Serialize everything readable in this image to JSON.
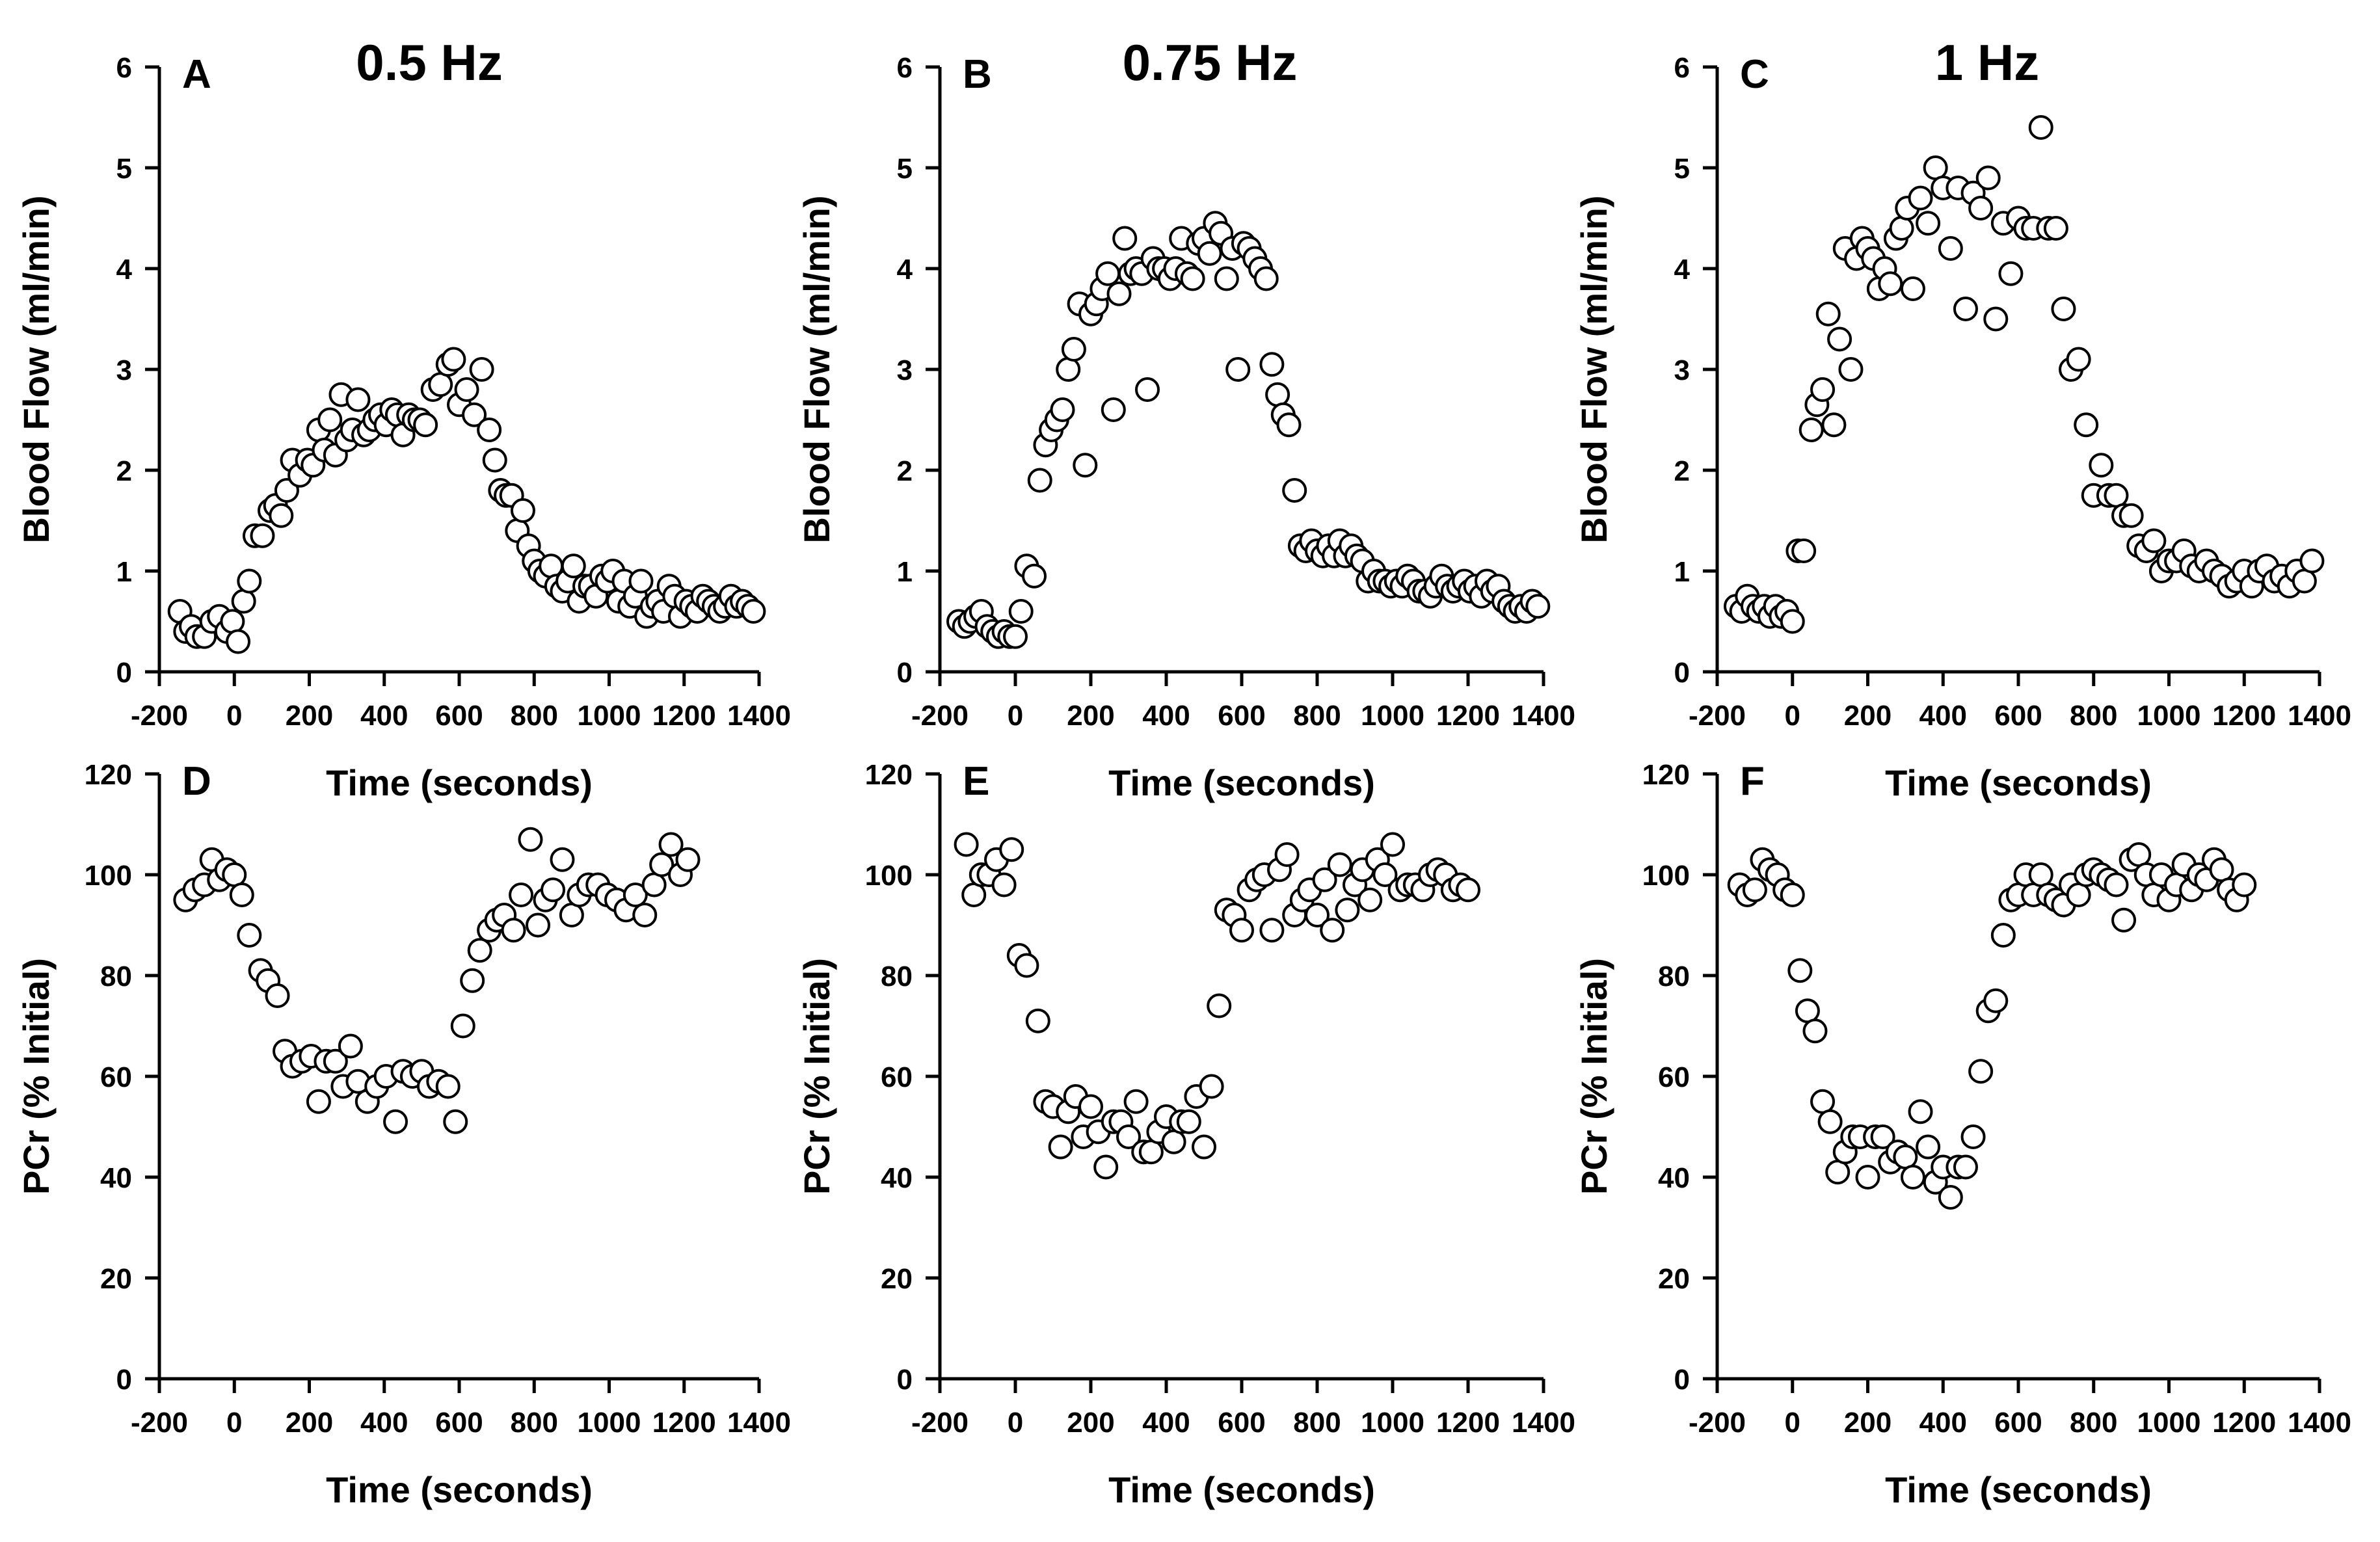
{
  "chart_data": [
    {
      "panel": "A",
      "type": "scatter",
      "title": "0.5 Hz",
      "xlabel": "Time (seconds)",
      "ylabel": "Blood Flow (ml/min)",
      "xlim": [
        -200,
        1400
      ],
      "ylim": [
        0,
        6
      ],
      "xticks": [
        -200,
        0,
        200,
        400,
        600,
        800,
        1000,
        1200,
        1400
      ],
      "yticks": [
        0,
        1,
        2,
        3,
        4,
        5,
        6
      ],
      "x": [
        -145,
        -130,
        -115,
        -100,
        -80,
        -60,
        -40,
        -20,
        -5,
        10,
        25,
        40,
        55,
        75,
        95,
        110,
        125,
        140,
        155,
        175,
        195,
        210,
        225,
        240,
        255,
        270,
        285,
        300,
        315,
        330,
        345,
        360,
        375,
        390,
        405,
        420,
        435,
        450,
        465,
        480,
        495,
        510,
        530,
        550,
        570,
        585,
        600,
        620,
        640,
        660,
        680,
        695,
        710,
        725,
        740,
        755,
        770,
        785,
        800,
        815,
        830,
        845,
        860,
        875,
        890,
        905,
        920,
        935,
        950,
        965,
        980,
        995,
        1010,
        1025,
        1040,
        1055,
        1070,
        1085,
        1100,
        1115,
        1130,
        1145,
        1160,
        1175,
        1190,
        1205,
        1220,
        1235,
        1250,
        1265,
        1280,
        1295,
        1310,
        1325,
        1340,
        1355,
        1370,
        1385
      ],
      "y": [
        0.6,
        0.4,
        0.45,
        0.35,
        0.35,
        0.5,
        0.55,
        0.4,
        0.5,
        0.3,
        0.7,
        0.9,
        1.35,
        1.35,
        1.6,
        1.65,
        1.55,
        1.8,
        2.1,
        1.95,
        2.1,
        2.05,
        2.4,
        2.2,
        2.5,
        2.15,
        2.75,
        2.3,
        2.4,
        2.7,
        2.35,
        2.4,
        2.5,
        2.55,
        2.45,
        2.6,
        2.55,
        2.35,
        2.55,
        2.5,
        2.5,
        2.45,
        2.8,
        2.85,
        3.05,
        3.1,
        2.65,
        2.8,
        2.55,
        3.0,
        2.4,
        2.1,
        1.8,
        1.75,
        1.75,
        1.4,
        1.6,
        1.25,
        1.1,
        1.0,
        0.95,
        1.05,
        0.85,
        0.8,
        0.9,
        1.05,
        0.7,
        0.85,
        0.85,
        0.75,
        0.95,
        0.9,
        1.0,
        0.7,
        0.9,
        0.65,
        0.75,
        0.9,
        0.55,
        0.65,
        0.7,
        0.6,
        0.85,
        0.75,
        0.55,
        0.7,
        0.65,
        0.6,
        0.75,
        0.7,
        0.65,
        0.6,
        0.65,
        0.75,
        0.65,
        0.7,
        0.65,
        0.6
      ]
    },
    {
      "panel": "B",
      "type": "scatter",
      "title": "0.75 Hz",
      "xlabel": "Time (seconds)",
      "ylabel": "Blood Flow (ml/min)",
      "xlim": [
        -200,
        1400
      ],
      "ylim": [
        0,
        6
      ],
      "xticks": [
        -200,
        0,
        200,
        400,
        600,
        800,
        1000,
        1200,
        1400
      ],
      "yticks": [
        0,
        1,
        2,
        3,
        4,
        5,
        6
      ],
      "x": [
        -150,
        -135,
        -120,
        -105,
        -90,
        -75,
        -60,
        -45,
        -30,
        -15,
        0,
        15,
        30,
        50,
        65,
        80,
        95,
        110,
        125,
        140,
        155,
        170,
        185,
        200,
        215,
        230,
        245,
        260,
        275,
        290,
        305,
        320,
        335,
        350,
        365,
        380,
        395,
        410,
        425,
        440,
        455,
        470,
        485,
        500,
        515,
        530,
        545,
        560,
        575,
        590,
        605,
        620,
        635,
        650,
        665,
        680,
        695,
        710,
        725,
        740,
        755,
        770,
        785,
        800,
        815,
        830,
        845,
        860,
        875,
        890,
        905,
        920,
        935,
        950,
        965,
        980,
        995,
        1010,
        1025,
        1040,
        1055,
        1070,
        1085,
        1100,
        1115,
        1130,
        1145,
        1160,
        1175,
        1190,
        1205,
        1220,
        1235,
        1250,
        1265,
        1280,
        1295,
        1310,
        1325,
        1340,
        1355,
        1370,
        1385
      ],
      "y": [
        0.5,
        0.45,
        0.5,
        0.55,
        0.6,
        0.45,
        0.4,
        0.35,
        0.4,
        0.35,
        0.35,
        0.6,
        1.05,
        0.95,
        1.9,
        2.25,
        2.4,
        2.5,
        2.6,
        3.0,
        3.2,
        3.65,
        2.05,
        3.55,
        3.65,
        3.8,
        3.95,
        2.6,
        3.75,
        4.3,
        3.95,
        4.0,
        3.95,
        2.8,
        4.1,
        4.0,
        4.0,
        3.9,
        4.0,
        4.3,
        3.95,
        3.9,
        4.25,
        4.3,
        4.15,
        4.45,
        4.35,
        3.9,
        4.2,
        3.0,
        4.25,
        4.2,
        4.1,
        4.0,
        3.9,
        3.05,
        2.75,
        2.55,
        2.45,
        1.8,
        1.25,
        1.2,
        1.3,
        1.2,
        1.15,
        1.25,
        1.15,
        1.3,
        1.15,
        1.25,
        1.15,
        1.1,
        0.9,
        1.0,
        0.9,
        0.9,
        0.85,
        0.9,
        0.85,
        0.95,
        0.9,
        0.8,
        0.8,
        0.75,
        0.85,
        0.95,
        0.85,
        0.8,
        0.85,
        0.9,
        0.8,
        0.85,
        0.75,
        0.9,
        0.8,
        0.85,
        0.7,
        0.65,
        0.6,
        0.65,
        0.6,
        0.7,
        0.65
      ]
    },
    {
      "panel": "C",
      "type": "scatter",
      "title": "1 Hz",
      "xlabel": "Time (seconds)",
      "ylabel": "Blood Flow (ml/min)",
      "xlim": [
        -200,
        1400
      ],
      "ylim": [
        0,
        6
      ],
      "xticks": [
        -200,
        0,
        200,
        400,
        600,
        800,
        1000,
        1200,
        1400
      ],
      "yticks": [
        0,
        1,
        2,
        3,
        4,
        5,
        6
      ],
      "x": [
        -150,
        -135,
        -120,
        -105,
        -90,
        -75,
        -60,
        -45,
        -30,
        -15,
        0,
        15,
        30,
        50,
        65,
        80,
        95,
        110,
        125,
        140,
        155,
        170,
        185,
        200,
        215,
        230,
        245,
        260,
        275,
        290,
        305,
        320,
        340,
        360,
        380,
        400,
        420,
        440,
        460,
        480,
        500,
        520,
        540,
        560,
        580,
        600,
        620,
        640,
        660,
        680,
        700,
        720,
        740,
        760,
        780,
        800,
        820,
        840,
        860,
        880,
        900,
        920,
        940,
        960,
        980,
        1000,
        1020,
        1040,
        1060,
        1080,
        1100,
        1120,
        1140,
        1160,
        1180,
        1200,
        1220,
        1240,
        1260,
        1280,
        1300,
        1320,
        1340,
        1360,
        1380
      ],
      "y": [
        0.65,
        0.6,
        0.75,
        0.65,
        0.6,
        0.65,
        0.55,
        0.65,
        0.55,
        0.6,
        0.5,
        1.2,
        1.2,
        2.4,
        2.65,
        2.8,
        3.55,
        2.45,
        3.3,
        4.2,
        3.0,
        4.1,
        4.3,
        4.2,
        4.1,
        3.8,
        4.0,
        3.85,
        4.3,
        4.4,
        4.6,
        3.8,
        4.7,
        4.45,
        5.0,
        4.8,
        4.2,
        4.8,
        3.6,
        4.75,
        4.6,
        4.9,
        3.5,
        4.45,
        3.95,
        4.5,
        4.4,
        4.4,
        5.4,
        4.4,
        4.4,
        3.6,
        3.0,
        3.1,
        2.45,
        1.75,
        2.05,
        1.75,
        1.75,
        1.55,
        1.55,
        1.25,
        1.2,
        1.3,
        1.0,
        1.1,
        1.1,
        1.2,
        1.05,
        1.0,
        1.1,
        1.0,
        0.95,
        0.85,
        0.9,
        1.0,
        0.85,
        1.0,
        1.05,
        0.9,
        0.95,
        0.85,
        1.0,
        0.9,
        1.1
      ]
    },
    {
      "panel": "D",
      "type": "scatter",
      "title": "",
      "xlabel": "Time (seconds)",
      "ylabel": "PCr (% Initial)",
      "xlim": [
        -200,
        1400
      ],
      "ylim": [
        0,
        120
      ],
      "xticks": [
        -200,
        0,
        200,
        400,
        600,
        800,
        1000,
        1200,
        1400
      ],
      "yticks": [
        0,
        20,
        40,
        60,
        80,
        100,
        120
      ],
      "x": [
        -130,
        -105,
        -80,
        -60,
        -40,
        -20,
        0,
        20,
        40,
        70,
        90,
        115,
        135,
        155,
        180,
        205,
        225,
        245,
        270,
        290,
        310,
        330,
        355,
        380,
        405,
        430,
        450,
        475,
        500,
        520,
        545,
        570,
        590,
        610,
        635,
        655,
        680,
        700,
        720,
        745,
        765,
        790,
        810,
        830,
        850,
        875,
        900,
        920,
        945,
        970,
        995,
        1020,
        1045,
        1070,
        1095,
        1120,
        1140,
        1165,
        1190,
        1210
      ],
      "y": [
        95,
        97,
        98,
        103,
        99,
        101,
        100,
        96,
        88,
        81,
        79,
        76,
        65,
        62,
        63,
        64,
        55,
        63,
        63,
        58,
        66,
        59,
        55,
        58,
        60,
        51,
        61,
        60,
        61,
        58,
        59,
        58,
        51,
        70,
        79,
        85,
        89,
        91,
        92,
        89,
        96,
        107,
        90,
        95,
        97,
        103,
        92,
        96,
        98,
        98,
        96,
        95,
        93,
        96,
        92,
        98,
        102,
        106,
        100,
        103
      ]
    },
    {
      "panel": "E",
      "type": "scatter",
      "title": "",
      "xlabel": "Time (seconds)",
      "ylabel": "PCr (% Initial)",
      "xlim": [
        -200,
        1400
      ],
      "ylim": [
        0,
        120
      ],
      "xticks": [
        -200,
        0,
        200,
        400,
        600,
        800,
        1000,
        1200,
        1400
      ],
      "yticks": [
        0,
        20,
        40,
        60,
        80,
        100,
        120
      ],
      "x": [
        -130,
        -110,
        -90,
        -70,
        -50,
        -30,
        -10,
        10,
        30,
        60,
        80,
        100,
        120,
        140,
        160,
        180,
        200,
        220,
        240,
        260,
        280,
        300,
        320,
        340,
        360,
        380,
        400,
        420,
        440,
        460,
        480,
        500,
        520,
        540,
        560,
        580,
        600,
        620,
        640,
        660,
        680,
        700,
        720,
        740,
        760,
        780,
        800,
        820,
        840,
        860,
        880,
        900,
        920,
        940,
        960,
        980,
        1000,
        1020,
        1040,
        1060,
        1080,
        1100,
        1120,
        1140,
        1160,
        1180,
        1200
      ],
      "y": [
        106,
        96,
        100,
        100,
        103,
        98,
        105,
        84,
        82,
        71,
        55,
        54,
        46,
        53,
        56,
        48,
        54,
        49,
        42,
        51,
        51,
        48,
        55,
        45,
        45,
        49,
        52,
        47,
        51,
        51,
        56,
        46,
        58,
        74,
        93,
        92,
        89,
        97,
        99,
        100,
        89,
        101,
        104,
        92,
        95,
        97,
        92,
        99,
        89,
        102,
        93,
        98,
        101,
        95,
        103,
        100,
        106,
        97,
        98,
        98,
        97,
        100,
        101,
        100,
        97,
        98,
        97
      ]
    },
    {
      "panel": "F",
      "type": "scatter",
      "title": "",
      "xlabel": "Time (seconds)",
      "ylabel": "PCr (% Initial)",
      "xlim": [
        -200,
        1400
      ],
      "ylim": [
        0,
        120
      ],
      "xticks": [
        -200,
        0,
        200,
        400,
        600,
        800,
        1000,
        1200,
        1400
      ],
      "yticks": [
        0,
        20,
        40,
        60,
        80,
        100,
        120
      ],
      "x": [
        -140,
        -120,
        -100,
        -80,
        -60,
        -40,
        -20,
        0,
        20,
        40,
        60,
        80,
        100,
        120,
        140,
        160,
        180,
        200,
        220,
        240,
        260,
        280,
        300,
        320,
        340,
        360,
        380,
        400,
        420,
        440,
        460,
        480,
        500,
        520,
        540,
        560,
        580,
        600,
        620,
        640,
        660,
        680,
        700,
        720,
        740,
        760,
        780,
        800,
        820,
        840,
        860,
        880,
        900,
        920,
        940,
        960,
        980,
        1000,
        1020,
        1040,
        1060,
        1080,
        1100,
        1120,
        1140,
        1160,
        1180,
        1200
      ],
      "y": [
        98,
        96,
        97,
        103,
        101,
        100,
        97,
        96,
        81,
        73,
        69,
        55,
        51,
        41,
        45,
        48,
        48,
        40,
        48,
        48,
        43,
        45,
        44,
        40,
        53,
        46,
        39,
        42,
        36,
        42,
        42,
        48,
        61,
        73,
        75,
        88,
        95,
        96,
        100,
        96,
        100,
        96,
        95,
        94,
        98,
        96,
        100,
        101,
        100,
        99,
        98,
        91,
        103,
        104,
        100,
        96,
        100,
        95,
        98,
        102,
        97,
        100,
        99,
        103,
        101,
        97,
        95,
        98
      ]
    }
  ]
}
